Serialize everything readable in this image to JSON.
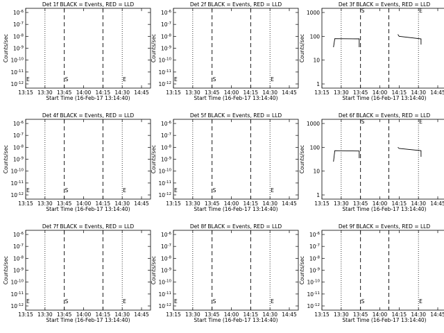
{
  "chart_data": [
    {
      "type": "line",
      "title": "Det 1f BLACK = Events, RED = LLD",
      "ylabel": "Counts/sec",
      "xlabel": "Start Time (16-Feb-17 13:14:40)",
      "xticks": [
        "13:15",
        "13:30",
        "13:45",
        "14:00",
        "14:15",
        "14:30",
        "14:45"
      ],
      "yscale": "log",
      "ylim": [
        1e-06,
        1e-09
      ],
      "yticks": [
        "10^-6",
        "10^-7",
        "10^-8",
        "10^-9",
        "10^-10",
        "10^-11",
        "10^-12"
      ],
      "ytick_exponents": [
        -6,
        -7,
        -8,
        -9,
        -10,
        -11,
        -12
      ],
      "markers": [
        {
          "text": "E",
          "x": "13:15"
        },
        {
          "text": "S",
          "x": "13:45"
        },
        {
          "text": "E",
          "x": "14:30"
        }
      ],
      "dotted_x": [
        "13:30",
        "14:30"
      ],
      "dashed_x": [
        "13:45",
        "14:15"
      ],
      "series": []
    },
    {
      "type": "line",
      "title": "Det 2f BLACK = Events, RED = LLD",
      "ylabel": "Counts/sec",
      "xlabel": "Start Time (16-Feb-17 13:14:40)",
      "xticks": [
        "13:15",
        "13:30",
        "13:45",
        "14:00",
        "14:15",
        "14:30",
        "14:45"
      ],
      "yscale": "log",
      "ytick_exponents": [
        -6,
        -7,
        -8,
        -9,
        -10,
        -11,
        -12
      ],
      "markers": [
        {
          "text": "E",
          "x": "13:15"
        },
        {
          "text": "S",
          "x": "13:45"
        },
        {
          "text": "E",
          "x": "14:30"
        }
      ],
      "dotted_x": [
        "13:30",
        "14:30"
      ],
      "dashed_x": [
        "13:45",
        "14:15"
      ],
      "series": []
    },
    {
      "type": "line",
      "title": "Det 3f BLACK = Events, RED = LLD",
      "ylabel": "Counts/sec",
      "xlabel": "Start Time (16-Feb-17 13:14:40)",
      "xticks": [
        "13:15",
        "13:30",
        "13:45",
        "14:00",
        "14:15",
        "14:30",
        "14:45"
      ],
      "yscale": "log",
      "ylim": [
        1,
        1000
      ],
      "ytick_labels": [
        "1",
        "10",
        "100",
        "1000"
      ],
      "markers": [
        {
          "text": "S",
          "x": "13:45"
        },
        {
          "text": "E",
          "x": "14:30"
        }
      ],
      "dotted_x": [
        "13:30",
        "14:30"
      ],
      "dashed_x": [
        "13:45",
        "14:07"
      ],
      "series": [
        {
          "segments": [
            [
              [
                "13:24",
                35
              ],
              [
                "13:25",
                80
              ],
              [
                "13:44",
                78
              ],
              [
                "13:44",
                35
              ]
            ],
            [
              [
                "14:14",
                120
              ],
              [
                "14:15",
                100
              ],
              [
                "14:32",
                78
              ],
              [
                "14:32",
                45
              ]
            ]
          ]
        }
      ]
    },
    {
      "type": "line",
      "title": "Det 4f BLACK = Events, RED = LLD",
      "ylabel": "Counts/sec",
      "xlabel": "Start Time (16-Feb-17 13:14:40)",
      "xticks": [
        "13:15",
        "13:30",
        "13:45",
        "14:00",
        "14:15",
        "14:30",
        "14:45"
      ],
      "yscale": "log",
      "ytick_exponents": [
        -6,
        -7,
        -8,
        -9,
        -10,
        -11,
        -12
      ],
      "markers": [
        {
          "text": "E",
          "x": "13:15"
        },
        {
          "text": "S",
          "x": "13:45"
        },
        {
          "text": "E",
          "x": "14:30"
        }
      ],
      "dotted_x": [
        "13:30",
        "14:30"
      ],
      "dashed_x": [
        "13:45",
        "14:15"
      ],
      "series": []
    },
    {
      "type": "line",
      "title": "Det 5f BLACK = Events, RED = LLD",
      "ylabel": "Counts/sec",
      "xlabel": "Start Time (16-Feb-17 13:14:40)",
      "xticks": [
        "13:15",
        "13:30",
        "13:45",
        "14:00",
        "14:15",
        "14:30",
        "14:45"
      ],
      "yscale": "log",
      "ytick_exponents": [
        -6,
        -7,
        -8,
        -9,
        -10,
        -11,
        -12
      ],
      "markers": [
        {
          "text": "E",
          "x": "13:15"
        },
        {
          "text": "S",
          "x": "13:45"
        },
        {
          "text": "E",
          "x": "14:30"
        }
      ],
      "dotted_x": [
        "13:30",
        "14:30"
      ],
      "dashed_x": [
        "13:45",
        "14:15"
      ],
      "series": []
    },
    {
      "type": "line",
      "title": "Det 6f BLACK = Events, RED = LLD",
      "ylabel": "Counts/sec",
      "xlabel": "Start Time (16-Feb-17 13:14:40)",
      "xticks": [
        "13:15",
        "13:30",
        "13:45",
        "14:00",
        "14:15",
        "14:30",
        "14:45"
      ],
      "yscale": "log",
      "ylim": [
        1,
        1000
      ],
      "ytick_labels": [
        "1",
        "10",
        "100",
        "1000"
      ],
      "markers": [
        {
          "text": "S",
          "x": "13:45"
        },
        {
          "text": "E",
          "x": "14:30"
        }
      ],
      "dotted_x": [
        "13:30",
        "14:30"
      ],
      "dashed_x": [
        "13:45",
        "14:07"
      ],
      "series": [
        {
          "segments": [
            [
              [
                "13:24",
                25
              ],
              [
                "13:25",
                72
              ],
              [
                "13:44",
                70
              ],
              [
                "13:44",
                35
              ]
            ],
            [
              [
                "14:14",
                100
              ],
              [
                "14:15",
                90
              ],
              [
                "14:32",
                72
              ],
              [
                "14:32",
                40
              ]
            ]
          ]
        }
      ]
    },
    {
      "type": "line",
      "title": "Det 7f BLACK = Events, RED = LLD",
      "ylabel": "Counts/sec",
      "xlabel": "Start Time (16-Feb-17 13:14:40)",
      "xticks": [
        "13:15",
        "13:30",
        "13:45",
        "14:00",
        "14:15",
        "14:30",
        "14:45"
      ],
      "yscale": "log",
      "ytick_exponents": [
        -6,
        -7,
        -8,
        -9,
        -10,
        -11,
        -12
      ],
      "markers": [
        {
          "text": "E",
          "x": "13:15"
        },
        {
          "text": "S",
          "x": "13:45"
        },
        {
          "text": "E",
          "x": "14:30"
        }
      ],
      "dotted_x": [
        "13:30",
        "14:30"
      ],
      "dashed_x": [
        "13:45",
        "14:15"
      ],
      "series": []
    },
    {
      "type": "line",
      "title": "Det 8f BLACK = Events, RED = LLD",
      "ylabel": "Counts/sec",
      "xlabel": "Start Time (16-Feb-17 13:14:40)",
      "xticks": [
        "13:15",
        "13:30",
        "13:45",
        "14:00",
        "14:15",
        "14:30",
        "14:45"
      ],
      "yscale": "log",
      "ytick_exponents": [
        -6,
        -7,
        -8,
        -9,
        -10,
        -11,
        -12
      ],
      "markers": [
        {
          "text": "E",
          "x": "13:15"
        },
        {
          "text": "S",
          "x": "13:45"
        },
        {
          "text": "E",
          "x": "14:30"
        }
      ],
      "dotted_x": [
        "13:30",
        "14:30"
      ],
      "dashed_x": [
        "13:45",
        "14:15"
      ],
      "series": []
    },
    {
      "type": "line",
      "title": "Det 9f BLACK = Events, RED = LLD",
      "ylabel": "Counts/sec",
      "xlabel": "Start Time (16-Feb-17 13:14:40)",
      "xticks": [
        "13:15",
        "13:30",
        "13:45",
        "14:00",
        "14:15",
        "14:30",
        "14:45"
      ],
      "yscale": "log",
      "ytick_exponents": [
        -6,
        -7,
        -8,
        -9,
        -10,
        -11,
        -12
      ],
      "markers": [
        {
          "text": "S",
          "x": "13:45"
        },
        {
          "text": "E",
          "x": "14:30"
        }
      ],
      "dotted_x": [
        "13:30",
        "14:30"
      ],
      "dashed_x": [
        "13:45",
        "14:07"
      ],
      "series": []
    }
  ]
}
